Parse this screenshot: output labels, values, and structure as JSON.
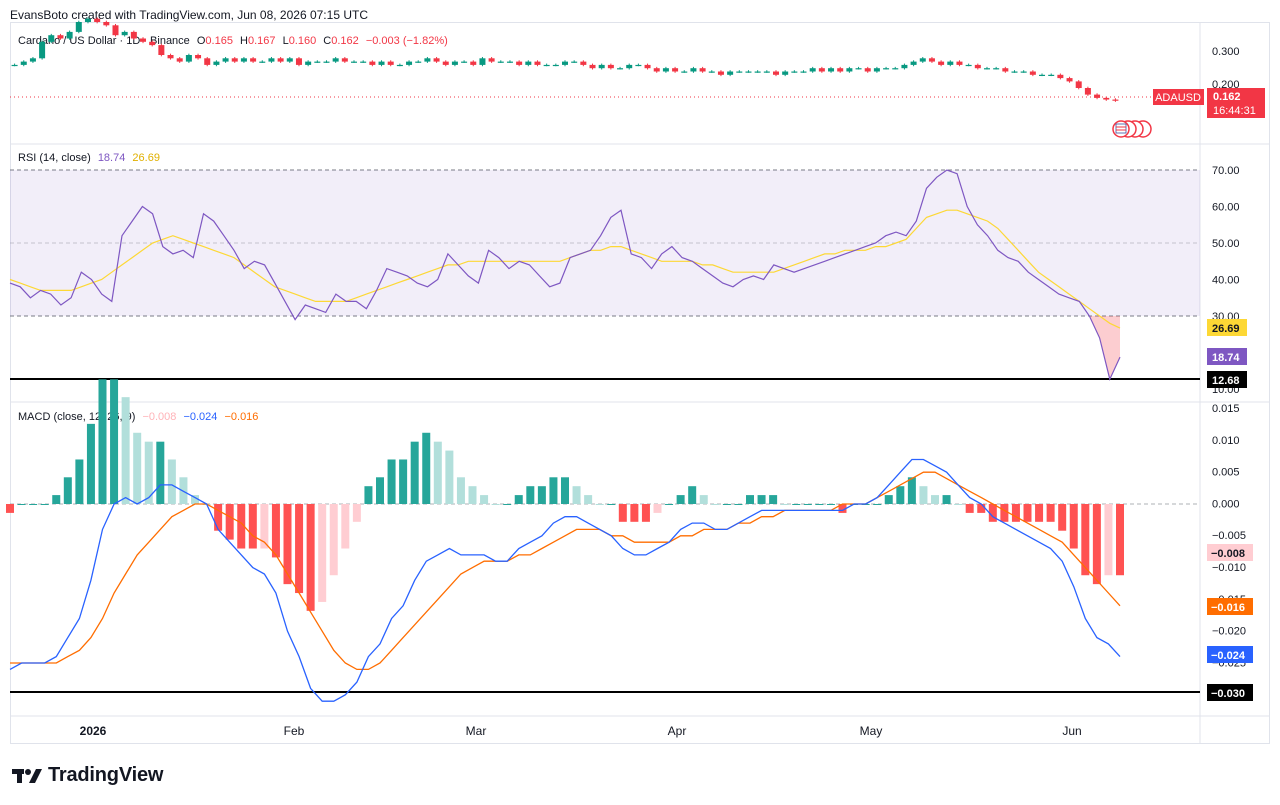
{
  "header": {
    "caption": "EvansBoto created with TradingView.com, Jun 08, 2026 07:15 UTC"
  },
  "price_pane": {
    "symbol_title": "Cardano / US Dollar · 1D · Binance",
    "ohlc": {
      "o_label": "O",
      "o": "0.165",
      "h_label": "H",
      "h": "0.167",
      "l_label": "L",
      "l": "0.160",
      "c_label": "C",
      "c": "0.162",
      "change": "−0.003 (−1.82%)"
    },
    "axis_ticks": [
      "0.300",
      "0.200"
    ],
    "symbol_badge": "ADAUSD",
    "price_badge": "0.162",
    "countdown": "16:44:31"
  },
  "rsi_pane": {
    "title": "RSI (14, close)",
    "value1": "18.74",
    "value2": "26.69",
    "axis_ticks": [
      "70.00",
      "60.00",
      "50.00",
      "40.00",
      "30.00",
      "20.00",
      "10.00"
    ],
    "badge_rsi": "18.74",
    "badge_ma": "26.69",
    "badge_line": "12.68"
  },
  "macd_pane": {
    "title": "MACD (close, 12, 26, 9)",
    "hist_value": "−0.008",
    "macd_value": "−0.024",
    "signal_value": "−0.016",
    "axis_ticks": [
      "0.015",
      "0.010",
      "0.005",
      "0.000",
      "−0.005",
      "−0.010",
      "−0.015",
      "−0.020",
      "−0.025"
    ],
    "badge_hist": "−0.008",
    "badge_signal": "−0.016",
    "badge_macd": "−0.024",
    "badge_line": "−0.030"
  },
  "time_axis": [
    "2026",
    "Feb",
    "Mar",
    "Apr",
    "May",
    "Jun"
  ],
  "footer": {
    "brand": "TradingView"
  },
  "colors": {
    "up": "#089981",
    "down": "#f23645",
    "rsi": "#7e57c2",
    "rsi_ma": "#fdd835",
    "macd": "#2962ff",
    "signal": "#ff6d00",
    "hist_up_strong": "#26a69a",
    "hist_up_weak": "#b2dfdb",
    "hist_down_strong": "#ff5252",
    "hist_down_weak": "#ffcdd2"
  },
  "chart_data": [
    {
      "type": "candlestick",
      "title": "Cardano / US Dollar · 1D · Binance",
      "ylim": [
        0.15,
        0.33
      ],
      "x_labels": [
        "2026",
        "Feb",
        "Mar",
        "Apr",
        "May",
        "Jun"
      ],
      "close": [
        0.27,
        0.28,
        0.29,
        0.34,
        0.36,
        0.35,
        0.37,
        0.4,
        0.41,
        0.4,
        0.39,
        0.36,
        0.37,
        0.35,
        0.34,
        0.33,
        0.3,
        0.29,
        0.28,
        0.3,
        0.29,
        0.27,
        0.28,
        0.29,
        0.28,
        0.29,
        0.28,
        0.28,
        0.29,
        0.28,
        0.29,
        0.27,
        0.28,
        0.28,
        0.28,
        0.29,
        0.28,
        0.28,
        0.28,
        0.27,
        0.28,
        0.27,
        0.27,
        0.28,
        0.28,
        0.29,
        0.28,
        0.27,
        0.28,
        0.28,
        0.27,
        0.29,
        0.28,
        0.28,
        0.28,
        0.27,
        0.28,
        0.27,
        0.27,
        0.27,
        0.28,
        0.28,
        0.27,
        0.26,
        0.27,
        0.26,
        0.26,
        0.27,
        0.27,
        0.26,
        0.25,
        0.26,
        0.25,
        0.25,
        0.26,
        0.25,
        0.25,
        0.24,
        0.25,
        0.25,
        0.25,
        0.25,
        0.25,
        0.24,
        0.25,
        0.25,
        0.25,
        0.26,
        0.25,
        0.26,
        0.25,
        0.26,
        0.26,
        0.25,
        0.26,
        0.26,
        0.26,
        0.27,
        0.28,
        0.29,
        0.28,
        0.27,
        0.28,
        0.27,
        0.27,
        0.26,
        0.26,
        0.26,
        0.25,
        0.25,
        0.25,
        0.24,
        0.24,
        0.24,
        0.23,
        0.22,
        0.2,
        0.18,
        0.17,
        0.165,
        0.162
      ],
      "last_close": 0.162
    },
    {
      "type": "line",
      "title": "RSI (14, close)",
      "ylim": [
        10,
        75
      ],
      "levels": [
        70,
        50,
        30
      ],
      "series": [
        {
          "name": "RSI",
          "values": [
            39,
            38,
            35,
            37,
            36,
            33,
            35,
            42,
            40,
            36,
            34,
            52,
            56,
            60,
            58,
            49,
            47,
            48,
            46,
            58,
            56,
            52,
            48,
            43,
            45,
            44,
            39,
            34,
            29,
            33,
            32,
            31,
            36,
            34,
            34,
            32,
            37,
            43,
            42,
            41,
            39,
            38,
            40,
            47,
            44,
            41,
            39,
            48,
            46,
            43,
            45,
            44,
            41,
            38,
            39,
            46,
            47,
            48,
            52,
            57,
            59,
            47,
            46,
            43,
            47,
            49,
            46,
            45,
            43,
            41,
            39,
            38,
            40,
            41,
            40,
            44,
            43,
            42,
            43,
            44,
            45,
            46,
            47,
            48,
            49,
            50,
            52,
            53,
            52,
            56,
            65,
            68,
            70,
            69,
            60,
            55,
            52,
            48,
            46,
            45,
            42,
            40,
            38,
            36,
            35,
            34,
            30,
            24,
            12.68,
            18.74
          ]
        },
        {
          "name": "RSI MA",
          "values": [
            40,
            39,
            38,
            37,
            37,
            37,
            37,
            38,
            39,
            40,
            42,
            44,
            46,
            48,
            50,
            51,
            52,
            51,
            50,
            49,
            48,
            47,
            46,
            44,
            42,
            40,
            38,
            37,
            36,
            35,
            34,
            34,
            34,
            34,
            35,
            36,
            37,
            38,
            39,
            40,
            41,
            42,
            43,
            44,
            44,
            45,
            45,
            45,
            45,
            45,
            45,
            45,
            45,
            45,
            45,
            46,
            47,
            48,
            48,
            49,
            49,
            48,
            47,
            46,
            45,
            45,
            45,
            45,
            44,
            44,
            43,
            42,
            42,
            42,
            42,
            42,
            43,
            44,
            45,
            46,
            47,
            47,
            48,
            48,
            48,
            49,
            49,
            50,
            51,
            54,
            57,
            58,
            59,
            59,
            58,
            57,
            56,
            54,
            51,
            48,
            45,
            42,
            40,
            38,
            36,
            34,
            32,
            30,
            28,
            26.69
          ]
        }
      ]
    },
    {
      "type": "line",
      "title": "MACD (close, 12, 26, 9)",
      "ylim": [
        -0.032,
        0.016
      ],
      "series": [
        {
          "name": "MACD",
          "values": [
            -0.026,
            -0.025,
            -0.025,
            -0.025,
            -0.024,
            -0.021,
            -0.018,
            -0.012,
            -0.004,
            0.0,
            0.001,
            0.0,
            0.001,
            0.003,
            0.003,
            0.002,
            0.001,
            0.0,
            -0.004,
            -0.006,
            -0.008,
            -0.01,
            -0.011,
            -0.014,
            -0.02,
            -0.024,
            -0.029,
            -0.031,
            -0.031,
            -0.03,
            -0.028,
            -0.024,
            -0.022,
            -0.018,
            -0.016,
            -0.012,
            -0.009,
            -0.008,
            -0.007,
            -0.008,
            -0.008,
            -0.008,
            -0.009,
            -0.009,
            -0.007,
            -0.006,
            -0.005,
            -0.003,
            -0.002,
            -0.002,
            -0.003,
            -0.004,
            -0.005,
            -0.007,
            -0.008,
            -0.008,
            -0.007,
            -0.006,
            -0.004,
            -0.003,
            -0.003,
            -0.004,
            -0.004,
            -0.003,
            -0.002,
            -0.001,
            -0.001,
            -0.001,
            -0.001,
            -0.001,
            -0.001,
            -0.001,
            -0.001,
            0.0,
            0.0,
            0.001,
            0.003,
            0.005,
            0.007,
            0.007,
            0.006,
            0.005,
            0.003,
            0.001,
            0.0,
            -0.002,
            -0.003,
            -0.004,
            -0.005,
            -0.006,
            -0.007,
            -0.009,
            -0.013,
            -0.018,
            -0.021,
            -0.022,
            -0.024
          ]
        },
        {
          "name": "Signal",
          "values": [
            -0.025,
            -0.025,
            -0.025,
            -0.025,
            -0.025,
            -0.024,
            -0.023,
            -0.021,
            -0.018,
            -0.014,
            -0.011,
            -0.008,
            -0.006,
            -0.004,
            -0.002,
            -0.001,
            0.0,
            0.0,
            -0.001,
            -0.002,
            -0.003,
            -0.005,
            -0.006,
            -0.008,
            -0.011,
            -0.014,
            -0.017,
            -0.02,
            -0.023,
            -0.025,
            -0.026,
            -0.026,
            -0.025,
            -0.023,
            -0.021,
            -0.019,
            -0.017,
            -0.015,
            -0.013,
            -0.011,
            -0.01,
            -0.009,
            -0.009,
            -0.009,
            -0.008,
            -0.008,
            -0.007,
            -0.006,
            -0.005,
            -0.004,
            -0.004,
            -0.004,
            -0.005,
            -0.005,
            -0.006,
            -0.006,
            -0.006,
            -0.006,
            -0.005,
            -0.005,
            -0.004,
            -0.004,
            -0.004,
            -0.003,
            -0.003,
            -0.002,
            -0.002,
            -0.001,
            -0.001,
            -0.001,
            -0.001,
            -0.001,
            0.0,
            0.0,
            0.0,
            0.001,
            0.002,
            0.003,
            0.004,
            0.005,
            0.005,
            0.004,
            0.003,
            0.002,
            0.001,
            0.0,
            -0.001,
            -0.002,
            -0.003,
            -0.004,
            -0.005,
            -0.006,
            -0.008,
            -0.01,
            -0.012,
            -0.014,
            -0.016
          ]
        }
      ]
    }
  ]
}
